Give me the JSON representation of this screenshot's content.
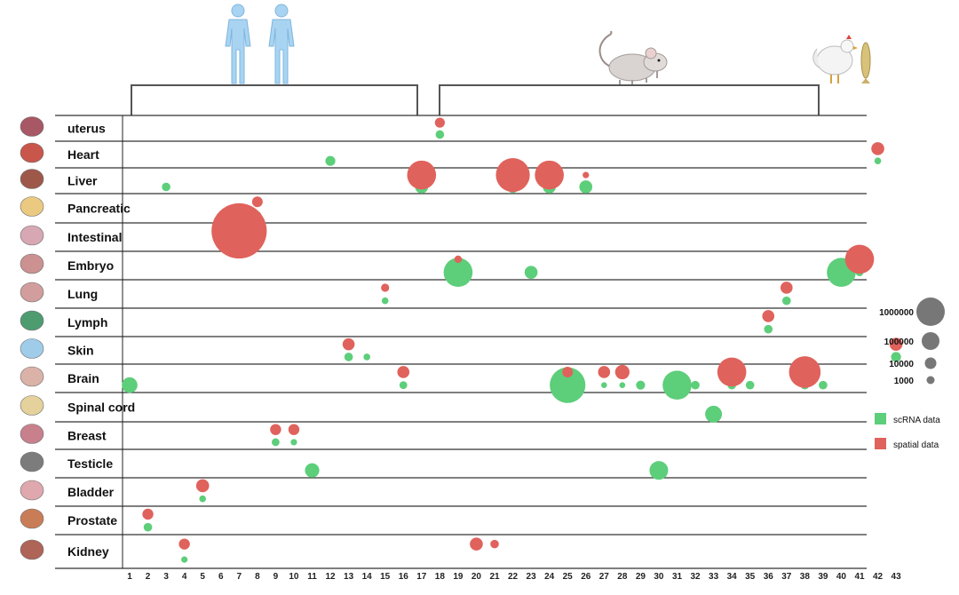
{
  "chart_data": {
    "type": "scatter",
    "rows": [
      "uterus",
      "Heart",
      "Liver",
      "Pancreatic",
      "Intestinal",
      "Embryo",
      "Lung",
      "Lymph",
      "Skin",
      "Brain",
      "Spinal cord",
      "Breast",
      "Testicle",
      "Bladder",
      "Prostate",
      "Kidney"
    ],
    "row_icons": [
      "uterus-icon",
      "heart-icon",
      "liver-icon",
      "pancreas-icon",
      "intestine-icon",
      "embryo-icon",
      "lung-icon",
      "lymph-icon",
      "skin-icon",
      "brain-icon",
      "spinal-cord-icon",
      "breast-icon",
      "testicle-icon",
      "bladder-icon",
      "prostate-icon",
      "kidney-icon"
    ],
    "x_ticks": [
      1,
      2,
      3,
      4,
      5,
      6,
      7,
      8,
      9,
      10,
      11,
      12,
      13,
      14,
      15,
      16,
      17,
      18,
      19,
      20,
      21,
      22,
      23,
      24,
      25,
      26,
      27,
      28,
      29,
      30,
      31,
      32,
      33,
      34,
      35,
      36,
      37,
      38,
      39,
      40,
      41,
      42,
      43
    ],
    "groups": [
      {
        "species": "human",
        "icon": "human-figures-icon",
        "x_range": [
          1,
          18
        ]
      },
      {
        "species": "mouse",
        "icon": "mouse-icon",
        "x_range": [
          19,
          41
        ]
      },
      {
        "species": "chicken-fish",
        "icon": "chicken-fish-icon",
        "x_range": [
          42,
          43
        ]
      }
    ],
    "size_legend": [
      1000000,
      100000,
      10000,
      1000
    ],
    "series": [
      {
        "name": "scRNA data",
        "color": "#5dce7a",
        "points": [
          {
            "x": 18,
            "row": "uterus",
            "size": 1000
          },
          {
            "x": 12,
            "row": "Heart",
            "size": 1500
          },
          {
            "x": 42,
            "row": "Heart",
            "size": 500
          },
          {
            "x": 3,
            "row": "Liver",
            "size": 1000
          },
          {
            "x": 17,
            "row": "Liver",
            "size": 3000
          },
          {
            "x": 22,
            "row": "Liver",
            "size": 2500
          },
          {
            "x": 24,
            "row": "Liver",
            "size": 3000
          },
          {
            "x": 26,
            "row": "Liver",
            "size": 3000
          },
          {
            "x": 8,
            "row": "Pancreatic",
            "size": 800
          },
          {
            "x": 6,
            "row": "Intestinal",
            "size": 1500
          },
          {
            "x": 7,
            "row": "Intestinal",
            "size": 5000
          },
          {
            "x": 19,
            "row": "Embryo",
            "size": 30000
          },
          {
            "x": 23,
            "row": "Embryo",
            "size": 3000
          },
          {
            "x": 40,
            "row": "Embryo",
            "size": 30000
          },
          {
            "x": 41,
            "row": "Embryo",
            "size": 800
          },
          {
            "x": 15,
            "row": "Lung",
            "size": 500
          },
          {
            "x": 37,
            "row": "Lung",
            "size": 1000
          },
          {
            "x": 36,
            "row": "Lymph",
            "size": 1000
          },
          {
            "x": 13,
            "row": "Skin",
            "size": 1000
          },
          {
            "x": 14,
            "row": "Skin",
            "size": 500
          },
          {
            "x": 43,
            "row": "Skin",
            "size": 1500
          },
          {
            "x": 1,
            "row": "Brain",
            "size": 5000
          },
          {
            "x": 16,
            "row": "Brain",
            "size": 800
          },
          {
            "x": 25,
            "row": "Brain",
            "size": 60000
          },
          {
            "x": 27,
            "row": "Brain",
            "size": 300
          },
          {
            "x": 28,
            "row": "Brain",
            "size": 300
          },
          {
            "x": 29,
            "row": "Brain",
            "size": 1200
          },
          {
            "x": 31,
            "row": "Brain",
            "size": 30000
          },
          {
            "x": 32,
            "row": "Brain",
            "size": 1000
          },
          {
            "x": 34,
            "row": "Brain",
            "size": 1000
          },
          {
            "x": 35,
            "row": "Brain",
            "size": 1000
          },
          {
            "x": 38,
            "row": "Brain",
            "size": 1000
          },
          {
            "x": 39,
            "row": "Brain",
            "size": 1000
          },
          {
            "x": 33,
            "row": "Spinal cord",
            "size": 6000
          },
          {
            "x": 9,
            "row": "Breast",
            "size": 800
          },
          {
            "x": 10,
            "row": "Breast",
            "size": 400
          },
          {
            "x": 11,
            "row": "Testicle",
            "size": 4000
          },
          {
            "x": 30,
            "row": "Testicle",
            "size": 8000
          },
          {
            "x": 5,
            "row": "Bladder",
            "size": 500
          },
          {
            "x": 2,
            "row": "Prostate",
            "size": 1000
          },
          {
            "x": 4,
            "row": "Kidney",
            "size": 400
          }
        ]
      },
      {
        "name": "spatial data",
        "color": "#e0625c",
        "points": [
          {
            "x": 18,
            "row": "uterus",
            "size": 1500
          },
          {
            "x": 42,
            "row": "Heart",
            "size": 3000
          },
          {
            "x": 17,
            "row": "Liver",
            "size": 30000
          },
          {
            "x": 22,
            "row": "Liver",
            "size": 50000
          },
          {
            "x": 24,
            "row": "Liver",
            "size": 30000
          },
          {
            "x": 26,
            "row": "Liver",
            "size": 400
          },
          {
            "x": 8,
            "row": "Pancreatic",
            "size": 1800
          },
          {
            "x": 6,
            "row": "Intestinal",
            "size": 2500
          },
          {
            "x": 7,
            "row": "Intestinal",
            "size": 300000
          },
          {
            "x": 19,
            "row": "Embryo",
            "size": 700
          },
          {
            "x": 41,
            "row": "Embryo",
            "size": 30000
          },
          {
            "x": 15,
            "row": "Lung",
            "size": 900
          },
          {
            "x": 37,
            "row": "Lung",
            "size": 2500
          },
          {
            "x": 36,
            "row": "Lymph",
            "size": 2500
          },
          {
            "x": 13,
            "row": "Skin",
            "size": 2500
          },
          {
            "x": 43,
            "row": "Skin",
            "size": 3000
          },
          {
            "x": 16,
            "row": "Brain",
            "size": 2500
          },
          {
            "x": 25,
            "row": "Brain",
            "size": 1800
          },
          {
            "x": 27,
            "row": "Brain",
            "size": 2500
          },
          {
            "x": 28,
            "row": "Brain",
            "size": 4000
          },
          {
            "x": 34,
            "row": "Brain",
            "size": 30000
          },
          {
            "x": 38,
            "row": "Brain",
            "size": 40000
          },
          {
            "x": 9,
            "row": "Breast",
            "size": 2000
          },
          {
            "x": 10,
            "row": "Breast",
            "size": 2000
          },
          {
            "x": 5,
            "row": "Bladder",
            "size": 3000
          },
          {
            "x": 2,
            "row": "Prostate",
            "size": 2000
          },
          {
            "x": 4,
            "row": "Kidney",
            "size": 2000
          },
          {
            "x": 20,
            "row": "Kidney",
            "size": 3000
          },
          {
            "x": 21,
            "row": "Kidney",
            "size": 1000
          }
        ]
      }
    ]
  }
}
